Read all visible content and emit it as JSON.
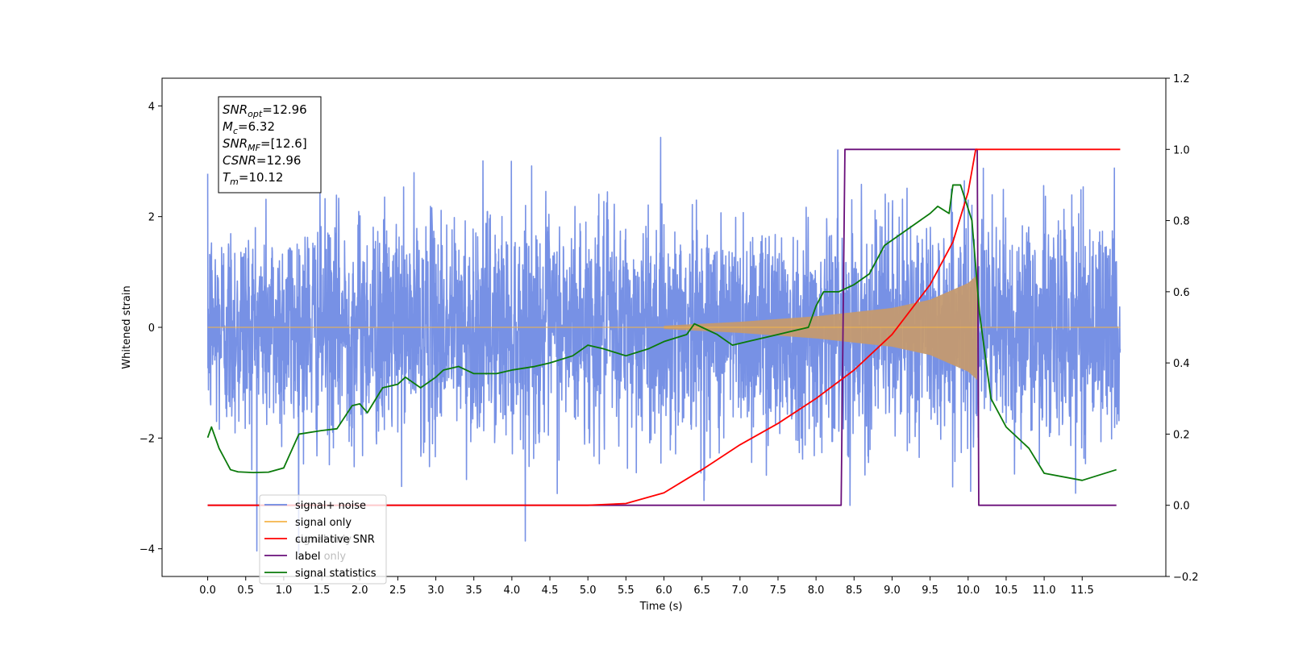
{
  "chart_data": {
    "type": "line",
    "xlabel": "Time (s)",
    "ylabel": "Whitened strain",
    "xlim": [
      -0.6,
      12.6
    ],
    "ylim": [
      -4.5,
      4.5
    ],
    "y2lim": [
      -0.2,
      1.2
    ],
    "x_ticks": [
      "0.0",
      "0.5",
      "1.0",
      "1.5",
      "2.0",
      "2.5",
      "3.0",
      "3.5",
      "4.0",
      "4.5",
      "5.0",
      "5.5",
      "6.0",
      "6.5",
      "7.0",
      "7.5",
      "8.0",
      "8.5",
      "9.0",
      "9.5",
      "10.0",
      "10.5",
      "11.0",
      "11.5"
    ],
    "y_ticks": [
      "4",
      "2",
      "0",
      "−2",
      "−4"
    ],
    "y2_ticks": [
      "1.2",
      "1.0",
      "0.8",
      "0.6",
      "0.4",
      "0.2",
      "0.0",
      "−0.2"
    ],
    "annotation": [
      {
        "main": "SNR",
        "sub": "opt",
        "value": "=12.96"
      },
      {
        "main": "M",
        "sub": "c",
        "value": "=6.32"
      },
      {
        "main": "SNR",
        "sub": "MF",
        "value": "=[12.6]"
      },
      {
        "main": "CSNR",
        "sub": "",
        "value": "=12.96"
      },
      {
        "main": "T",
        "sub": "m",
        "value": "=10.12"
      }
    ],
    "legend": {
      "placement": "lower-left",
      "entries": [
        {
          "label": "signal+ noise",
          "color": "#6b88e3"
        },
        {
          "label": "signal only",
          "color": "#f5b54a"
        },
        {
          "label": "cumilative SNR",
          "color": "#ff0000"
        },
        {
          "label": "label",
          "color": "#6a0f7a"
        },
        {
          "label": "signal statistics",
          "color": "#0a7a0a"
        }
      ],
      "hidden_text": [
        "signal only",
        "label only",
        "signal statistics"
      ]
    },
    "series": [
      {
        "name": "signal+ noise",
        "axis": "left",
        "color": "#6b88e3",
        "x_range": [
          0.0,
          12.0
        ],
        "sigma": 1.0
      },
      {
        "name": "signal only",
        "axis": "left",
        "color": "#f5b54a",
        "envelope_x": [
          0.0,
          6.0,
          7.0,
          8.0,
          9.0,
          9.5,
          10.0,
          10.12
        ],
        "envelope_amp": [
          0.0,
          0.03,
          0.1,
          0.2,
          0.35,
          0.5,
          0.8,
          0.95
        ]
      },
      {
        "name": "cumilative SNR",
        "axis": "right",
        "color": "#ff0000",
        "x": [
          0.0,
          5.0,
          5.5,
          6.0,
          6.5,
          7.0,
          7.5,
          8.0,
          8.5,
          9.0,
          9.5,
          9.8,
          10.0,
          10.1,
          12.0
        ],
        "y": [
          0.0,
          0.0,
          0.005,
          0.035,
          0.1,
          0.17,
          0.23,
          0.3,
          0.38,
          0.48,
          0.62,
          0.74,
          0.88,
          1.0,
          1.0
        ]
      },
      {
        "name": "label",
        "axis": "right",
        "color": "#6a0f7a",
        "x": [
          0.0,
          8.33,
          8.38,
          10.12,
          10.14,
          11.95
        ],
        "y": [
          0.0,
          0.0,
          1.0,
          1.0,
          0.0,
          0.0
        ]
      },
      {
        "name": "signal statistics",
        "axis": "right",
        "color": "#0a7a0a",
        "x": [
          0.0,
          0.05,
          0.15,
          0.25,
          0.3,
          0.4,
          0.6,
          0.8,
          1.0,
          1.2,
          1.5,
          1.7,
          1.9,
          2.0,
          2.1,
          2.3,
          2.5,
          2.6,
          2.8,
          3.0,
          3.1,
          3.3,
          3.5,
          3.8,
          4.0,
          4.3,
          4.5,
          4.8,
          5.0,
          5.2,
          5.5,
          5.8,
          6.0,
          6.3,
          6.4,
          6.5,
          6.7,
          6.9,
          7.1,
          7.3,
          7.5,
          7.7,
          7.9,
          8.0,
          8.1,
          8.3,
          8.5,
          8.7,
          8.9,
          9.1,
          9.3,
          9.5,
          9.6,
          9.75,
          9.8,
          9.9,
          10.05,
          10.15,
          10.3,
          10.5,
          10.8,
          11.0,
          11.5,
          11.95
        ],
        "y": [
          0.19,
          0.22,
          0.16,
          0.12,
          0.1,
          0.094,
          0.092,
          0.093,
          0.105,
          0.2,
          0.21,
          0.215,
          0.28,
          0.285,
          0.26,
          0.33,
          0.34,
          0.36,
          0.33,
          0.36,
          0.38,
          0.39,
          0.37,
          0.37,
          0.38,
          0.39,
          0.4,
          0.42,
          0.45,
          0.44,
          0.42,
          0.44,
          0.46,
          0.48,
          0.51,
          0.5,
          0.48,
          0.45,
          0.46,
          0.47,
          0.48,
          0.49,
          0.5,
          0.56,
          0.6,
          0.6,
          0.62,
          0.65,
          0.73,
          0.76,
          0.79,
          0.82,
          0.84,
          0.82,
          0.9,
          0.9,
          0.8,
          0.54,
          0.3,
          0.22,
          0.16,
          0.09,
          0.07,
          0.1
        ]
      }
    ]
  }
}
